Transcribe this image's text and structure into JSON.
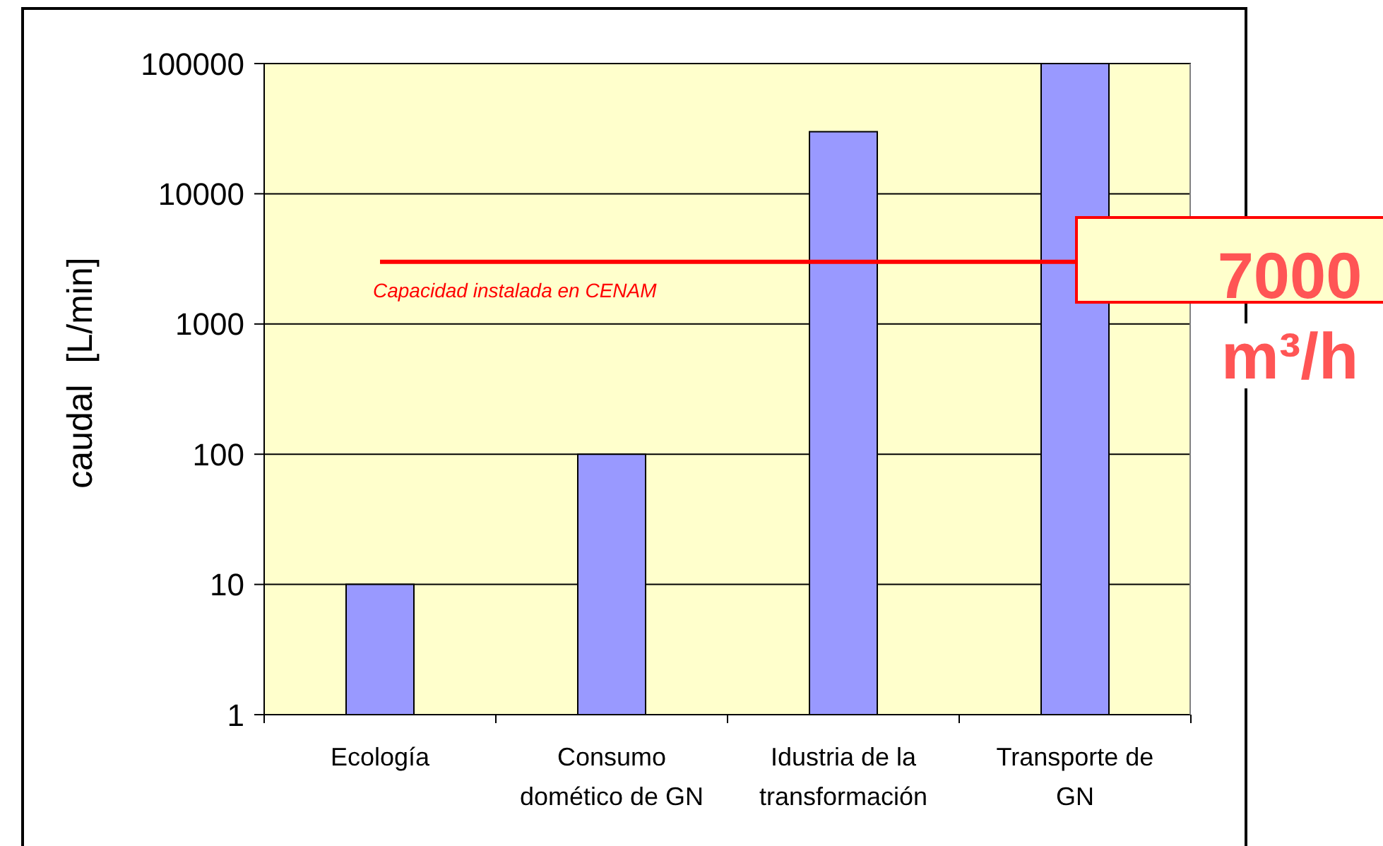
{
  "chart_data": {
    "type": "bar",
    "categories": [
      "Ecología",
      "Consumo domético de GN",
      "Idustria de la transformación",
      "Transporte de GN"
    ],
    "values": [
      10,
      100,
      30000,
      100000
    ],
    "color": "#9999ff",
    "ylabel": "caudal [L/min]",
    "log": true,
    "ylim": [
      1,
      100000
    ],
    "yticks": [
      1,
      10,
      100,
      1000,
      10000,
      100000
    ],
    "grid": "y",
    "ref_lines": [
      {
        "axis": "y",
        "value": 3000,
        "label": "Capacidad instalada en CENAM",
        "color": "#ff0000"
      }
    ],
    "annotations": [
      "7000",
      "m³/h"
    ]
  }
}
